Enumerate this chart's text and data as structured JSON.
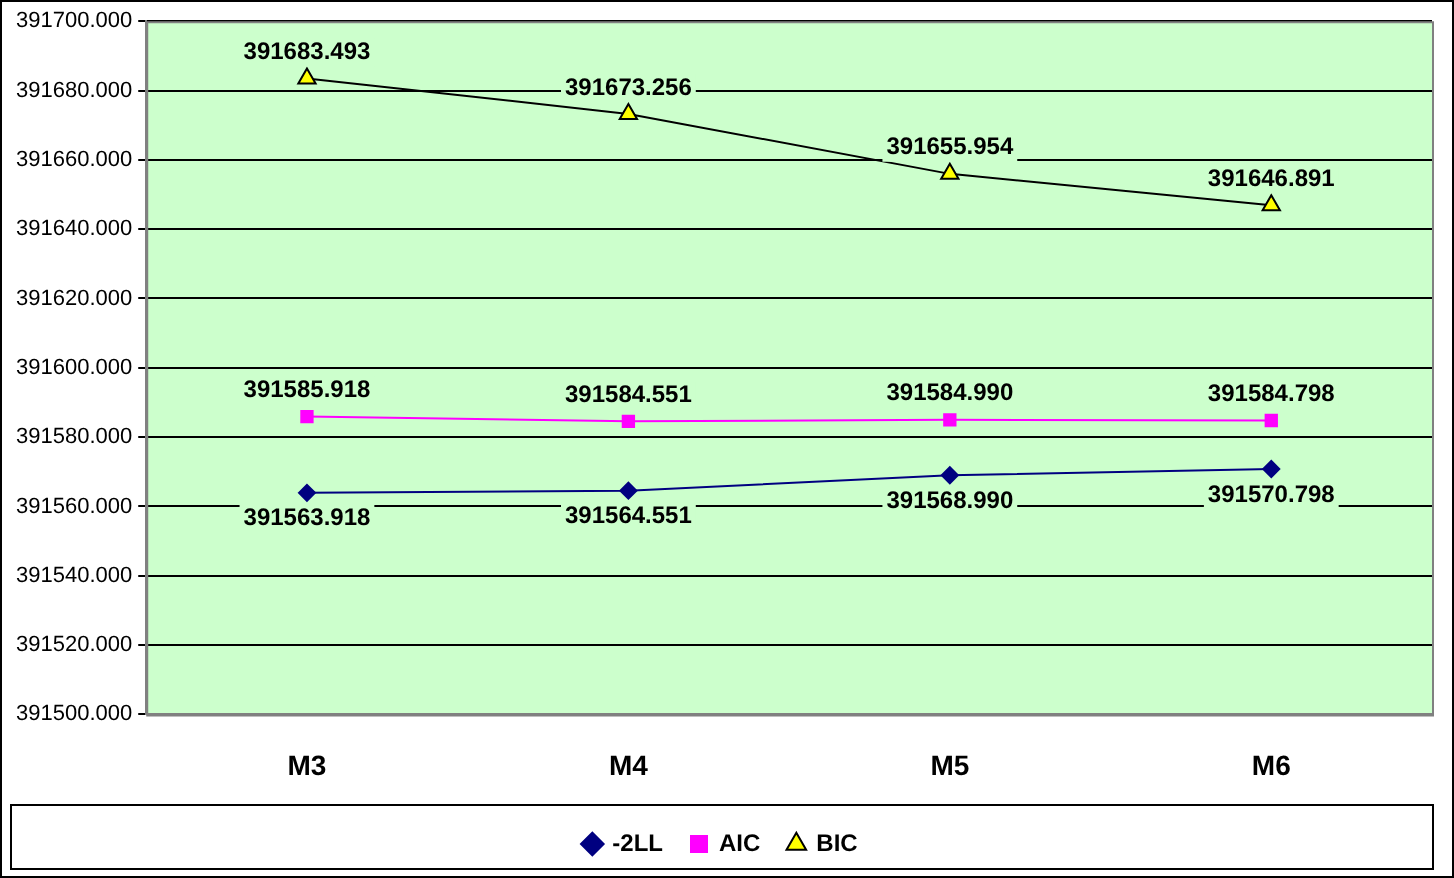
{
  "chart_data": {
    "type": "line",
    "categories": [
      "M3",
      "M4",
      "M5",
      "M6"
    ],
    "series": [
      {
        "name": "-2LL",
        "color": "#000080",
        "marker": "diamond",
        "values": [
          391563.918,
          391564.551,
          391568.99,
          391570.798
        ],
        "value_labels": [
          "391563.918",
          "391564.551",
          "391568.990",
          "391570.798"
        ]
      },
      {
        "name": "AIC",
        "color": "#ff00ff",
        "marker": "square",
        "values": [
          391585.918,
          391584.551,
          391584.99,
          391584.798
        ],
        "value_labels": [
          "391585.918",
          "391584.551",
          "391584.990",
          "391584.798"
        ]
      },
      {
        "name": "BIC",
        "color": "#000000",
        "marker": "triangle",
        "values": [
          391683.493,
          391673.256,
          391655.954,
          391646.891
        ],
        "value_labels": [
          "391683.493",
          "391673.256",
          "391655.954",
          "391646.891"
        ]
      }
    ],
    "ylim": [
      391500,
      391700
    ],
    "yticks": [
      {
        "value": 391500,
        "label": "391500.000"
      },
      {
        "value": 391520,
        "label": "391520.000"
      },
      {
        "value": 391540,
        "label": "391540.000"
      },
      {
        "value": 391560,
        "label": "391560.000"
      },
      {
        "value": 391580,
        "label": "391580.000"
      },
      {
        "value": 391600,
        "label": "391600.000"
      },
      {
        "value": 391620,
        "label": "391620.000"
      },
      {
        "value": 391640,
        "label": "391640.000"
      },
      {
        "value": 391660,
        "label": "391660.000"
      },
      {
        "value": 391680,
        "label": "391680.000"
      },
      {
        "value": 391700,
        "label": "391700.000"
      }
    ],
    "grid": "y",
    "legend": "bottom",
    "line_style": "solid"
  }
}
